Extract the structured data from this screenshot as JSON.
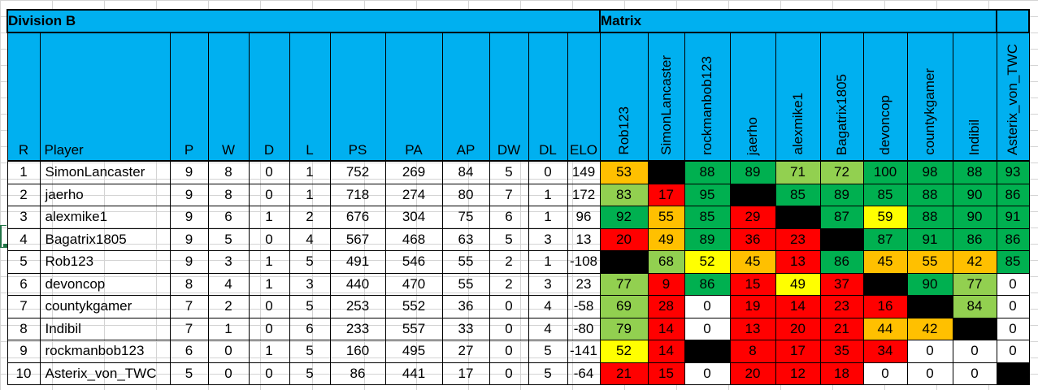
{
  "division_title": "Division B",
  "matrix_title": "Matrix",
  "columns": [
    "R",
    "Player",
    "P",
    "W",
    "D",
    "L",
    "PS",
    "PA",
    "AP",
    "DW",
    "DL",
    "ELO"
  ],
  "matrix_columns": [
    "Rob123",
    "SimonLancaster",
    "rockmanbob123",
    "jaerho",
    "alexmike1",
    "Bagatrix1805",
    "devoncop",
    "countykgamer",
    "Indibil",
    "Asterix_von_TWC"
  ],
  "colors": {
    "header": "#00b0f0",
    "green": "#00b050",
    "light_green": "#92d050",
    "yellow": "#ffff00",
    "orange": "#ffc000",
    "red": "#ff0000",
    "black": "#000000",
    "white": "#ffffff"
  },
  "rows": [
    {
      "cells": [
        "1",
        "SimonLancaster",
        "9",
        "8",
        "0",
        "1",
        "752",
        "269",
        "84",
        "5",
        "0",
        "149"
      ],
      "matrix": [
        {
          "v": "53",
          "c": "orange"
        },
        {
          "v": "",
          "c": "black"
        },
        {
          "v": "88",
          "c": "green"
        },
        {
          "v": "89",
          "c": "green"
        },
        {
          "v": "71",
          "c": "light_green"
        },
        {
          "v": "72",
          "c": "light_green"
        },
        {
          "v": "100",
          "c": "green"
        },
        {
          "v": "98",
          "c": "green"
        },
        {
          "v": "88",
          "c": "green"
        },
        {
          "v": "93",
          "c": "green"
        }
      ]
    },
    {
      "cells": [
        "2",
        "jaerho",
        "9",
        "8",
        "0",
        "1",
        "718",
        "274",
        "80",
        "7",
        "1",
        "172"
      ],
      "matrix": [
        {
          "v": "83",
          "c": "light_green"
        },
        {
          "v": "17",
          "c": "red"
        },
        {
          "v": "95",
          "c": "green"
        },
        {
          "v": "",
          "c": "black"
        },
        {
          "v": "85",
          "c": "green"
        },
        {
          "v": "89",
          "c": "green"
        },
        {
          "v": "85",
          "c": "green"
        },
        {
          "v": "88",
          "c": "green"
        },
        {
          "v": "90",
          "c": "green"
        },
        {
          "v": "86",
          "c": "green"
        }
      ]
    },
    {
      "cells": [
        "3",
        "alexmike1",
        "9",
        "6",
        "1",
        "2",
        "676",
        "304",
        "75",
        "6",
        "1",
        "96"
      ],
      "matrix": [
        {
          "v": "92",
          "c": "green"
        },
        {
          "v": "55",
          "c": "orange"
        },
        {
          "v": "85",
          "c": "green"
        },
        {
          "v": "29",
          "c": "red"
        },
        {
          "v": "",
          "c": "black"
        },
        {
          "v": "87",
          "c": "green"
        },
        {
          "v": "59",
          "c": "yellow"
        },
        {
          "v": "88",
          "c": "green"
        },
        {
          "v": "90",
          "c": "green"
        },
        {
          "v": "91",
          "c": "green"
        }
      ]
    },
    {
      "cells": [
        "4",
        "Bagatrix1805",
        "9",
        "5",
        "0",
        "4",
        "567",
        "468",
        "63",
        "5",
        "3",
        "13"
      ],
      "matrix": [
        {
          "v": "20",
          "c": "red"
        },
        {
          "v": "49",
          "c": "orange"
        },
        {
          "v": "89",
          "c": "green"
        },
        {
          "v": "36",
          "c": "red"
        },
        {
          "v": "23",
          "c": "red"
        },
        {
          "v": "",
          "c": "black"
        },
        {
          "v": "87",
          "c": "green"
        },
        {
          "v": "91",
          "c": "green"
        },
        {
          "v": "86",
          "c": "green"
        },
        {
          "v": "86",
          "c": "green"
        }
      ]
    },
    {
      "cells": [
        "5",
        "Rob123",
        "9",
        "3",
        "1",
        "5",
        "491",
        "546",
        "55",
        "2",
        "1",
        "-108"
      ],
      "matrix": [
        {
          "v": "",
          "c": "black"
        },
        {
          "v": "68",
          "c": "light_green"
        },
        {
          "v": "52",
          "c": "yellow"
        },
        {
          "v": "45",
          "c": "orange"
        },
        {
          "v": "13",
          "c": "red"
        },
        {
          "v": "86",
          "c": "green"
        },
        {
          "v": "45",
          "c": "orange"
        },
        {
          "v": "55",
          "c": "orange"
        },
        {
          "v": "42",
          "c": "orange"
        },
        {
          "v": "85",
          "c": "green"
        }
      ]
    },
    {
      "cells": [
        "6",
        "devoncop",
        "8",
        "4",
        "1",
        "3",
        "440",
        "470",
        "55",
        "2",
        "3",
        "23"
      ],
      "matrix": [
        {
          "v": "77",
          "c": "light_green"
        },
        {
          "v": "9",
          "c": "red"
        },
        {
          "v": "86",
          "c": "green"
        },
        {
          "v": "15",
          "c": "red"
        },
        {
          "v": "49",
          "c": "yellow"
        },
        {
          "v": "37",
          "c": "red"
        },
        {
          "v": "",
          "c": "black"
        },
        {
          "v": "90",
          "c": "green"
        },
        {
          "v": "77",
          "c": "light_green"
        },
        {
          "v": "0",
          "c": "white"
        }
      ]
    },
    {
      "cells": [
        "7",
        "countykgamer",
        "7",
        "2",
        "0",
        "5",
        "253",
        "552",
        "36",
        "0",
        "4",
        "-58"
      ],
      "matrix": [
        {
          "v": "69",
          "c": "light_green"
        },
        {
          "v": "28",
          "c": "red"
        },
        {
          "v": "0",
          "c": "white"
        },
        {
          "v": "19",
          "c": "red"
        },
        {
          "v": "14",
          "c": "red"
        },
        {
          "v": "23",
          "c": "red"
        },
        {
          "v": "16",
          "c": "red"
        },
        {
          "v": "",
          "c": "black"
        },
        {
          "v": "84",
          "c": "light_green"
        },
        {
          "v": "0",
          "c": "white"
        }
      ]
    },
    {
      "cells": [
        "8",
        "Indibil",
        "7",
        "1",
        "0",
        "6",
        "233",
        "557",
        "33",
        "0",
        "4",
        "-80"
      ],
      "matrix": [
        {
          "v": "79",
          "c": "light_green"
        },
        {
          "v": "14",
          "c": "red"
        },
        {
          "v": "0",
          "c": "white"
        },
        {
          "v": "13",
          "c": "red"
        },
        {
          "v": "20",
          "c": "red"
        },
        {
          "v": "21",
          "c": "red"
        },
        {
          "v": "44",
          "c": "orange"
        },
        {
          "v": "42",
          "c": "orange"
        },
        {
          "v": "",
          "c": "black"
        },
        {
          "v": "0",
          "c": "white"
        }
      ]
    },
    {
      "cells": [
        "9",
        "rockmanbob123",
        "6",
        "0",
        "1",
        "5",
        "160",
        "495",
        "27",
        "0",
        "5",
        "-141"
      ],
      "matrix": [
        {
          "v": "52",
          "c": "yellow"
        },
        {
          "v": "14",
          "c": "red"
        },
        {
          "v": "",
          "c": "black"
        },
        {
          "v": "8",
          "c": "red"
        },
        {
          "v": "17",
          "c": "red"
        },
        {
          "v": "35",
          "c": "red"
        },
        {
          "v": "34",
          "c": "red"
        },
        {
          "v": "0",
          "c": "white"
        },
        {
          "v": "0",
          "c": "white"
        },
        {
          "v": "0",
          "c": "white"
        }
      ]
    },
    {
      "cells": [
        "10",
        "Asterix_von_TWC",
        "5",
        "0",
        "0",
        "5",
        "86",
        "441",
        "17",
        "0",
        "5",
        "-64"
      ],
      "matrix": [
        {
          "v": "21",
          "c": "red"
        },
        {
          "v": "15",
          "c": "red"
        },
        {
          "v": "0",
          "c": "white"
        },
        {
          "v": "20",
          "c": "red"
        },
        {
          "v": "12",
          "c": "red"
        },
        {
          "v": "18",
          "c": "red"
        },
        {
          "v": "0",
          "c": "white"
        },
        {
          "v": "0",
          "c": "white"
        },
        {
          "v": "0",
          "c": "white"
        },
        {
          "v": "",
          "c": "black"
        }
      ]
    }
  ]
}
